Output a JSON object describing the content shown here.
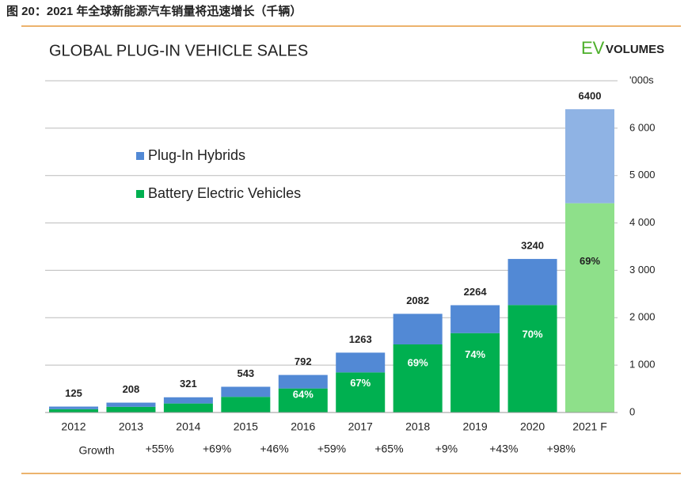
{
  "caption": "图 20：2021 年全球新能源汽车销量将迅速增长（千辆）",
  "logo": {
    "ev": "EV",
    "volumes": "VOLUMES"
  },
  "chart_data": {
    "type": "bar",
    "stacked": true,
    "title": "GLOBAL PLUG-IN VEHICLE SALES",
    "categories": [
      "2012",
      "2013",
      "2014",
      "2015",
      "2016",
      "2017",
      "2018",
      "2019",
      "2020",
      "2021 F"
    ],
    "series": [
      {
        "name": "Battery Electric Vehicles",
        "color": "#00b050",
        "forecast_color": "#8ee08a",
        "values": [
          70,
          120,
          190,
          330,
          507,
          846,
          1437,
          1675,
          2268,
          4416
        ],
        "value_labels": [
          null,
          null,
          null,
          null,
          "64%",
          "67%",
          "69%",
          "74%",
          "70%",
          "69%"
        ]
      },
      {
        "name": "Plug-In Hybrids",
        "color": "#5289d5",
        "forecast_color": "#8fb3e4",
        "values": [
          55,
          88,
          131,
          213,
          285,
          417,
          645,
          589,
          972,
          1984
        ]
      }
    ],
    "totals": [
      125,
      208,
      321,
      543,
      792,
      1263,
      2082,
      2264,
      3240,
      6400
    ],
    "forecast_index": 9,
    "growth_title": "Growth",
    "growth": [
      "+55%",
      "+69%",
      "+46%",
      "+59%",
      "+65%",
      "+9%",
      "+43%",
      "+98%"
    ],
    "ylim": [
      0,
      7000
    ],
    "yticks": [
      0,
      {
        "value": 1000,
        "label": "1 000"
      },
      {
        "value": 2000,
        "label": "2 000"
      },
      {
        "value": 3000,
        "label": "3 000"
      },
      {
        "value": 4000,
        "label": "4 000"
      },
      {
        "value": 5000,
        "label": "5 000"
      },
      {
        "value": 6000,
        "label": "6 000"
      },
      {
        "value": 7000,
        "label": "'000s"
      }
    ],
    "grid": true
  }
}
